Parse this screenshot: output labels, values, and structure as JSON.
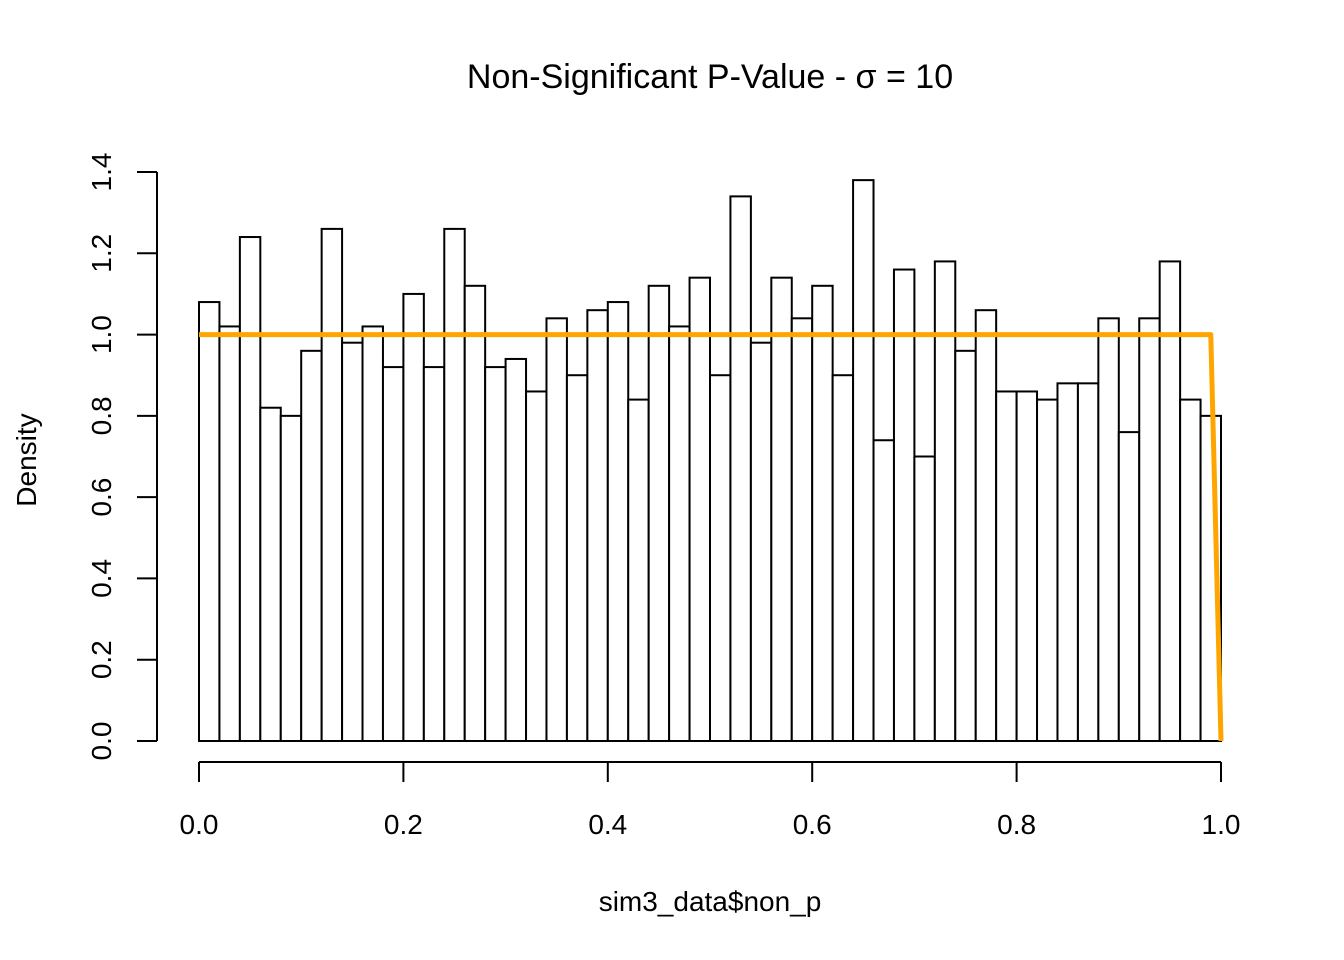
{
  "chart_data": {
    "type": "bar",
    "title": "Non-Significant P-Value - σ = 10",
    "xlabel": "sim3_data$non_p",
    "ylabel": "Density",
    "bin_width": 0.02,
    "xlim": [
      0,
      1
    ],
    "ylim": [
      0,
      1.4
    ],
    "xticks": [
      "0.0",
      "0.2",
      "0.4",
      "0.6",
      "0.8",
      "1.0"
    ],
    "yticks": [
      "0.0",
      "0.2",
      "0.4",
      "0.6",
      "0.8",
      "1.0",
      "1.2",
      "1.4"
    ],
    "bin_starts": [
      0.0,
      0.02,
      0.04,
      0.06,
      0.08,
      0.1,
      0.12,
      0.14,
      0.16,
      0.18,
      0.2,
      0.22,
      0.24,
      0.26,
      0.28,
      0.3,
      0.32,
      0.34,
      0.36,
      0.38,
      0.4,
      0.42,
      0.44,
      0.46,
      0.48,
      0.5,
      0.52,
      0.54,
      0.56,
      0.58,
      0.6,
      0.62,
      0.64,
      0.66,
      0.68,
      0.7,
      0.72,
      0.74,
      0.76,
      0.78,
      0.8,
      0.82,
      0.84,
      0.86,
      0.88,
      0.9,
      0.92,
      0.94,
      0.96,
      0.98
    ],
    "values": [
      1.08,
      1.02,
      1.24,
      0.82,
      0.8,
      0.96,
      1.26,
      0.98,
      1.02,
      0.92,
      1.1,
      0.92,
      1.26,
      1.12,
      0.92,
      0.94,
      0.86,
      1.04,
      0.9,
      1.06,
      1.08,
      0.84,
      1.12,
      1.02,
      1.14,
      0.9,
      1.34,
      0.98,
      1.14,
      1.04,
      1.12,
      0.9,
      1.38,
      0.74,
      1.16,
      0.7,
      1.18,
      0.96,
      1.06,
      0.86,
      0.86,
      0.84,
      0.88,
      0.88,
      1.04,
      0.76,
      1.04,
      1.18,
      0.84,
      0.8
    ],
    "overlay_line": {
      "color": "#FFA500",
      "x": [
        0,
        0.99,
        1.0
      ],
      "y": [
        1.0,
        1.0,
        0.0
      ]
    },
    "grid": false,
    "legend": "none"
  }
}
